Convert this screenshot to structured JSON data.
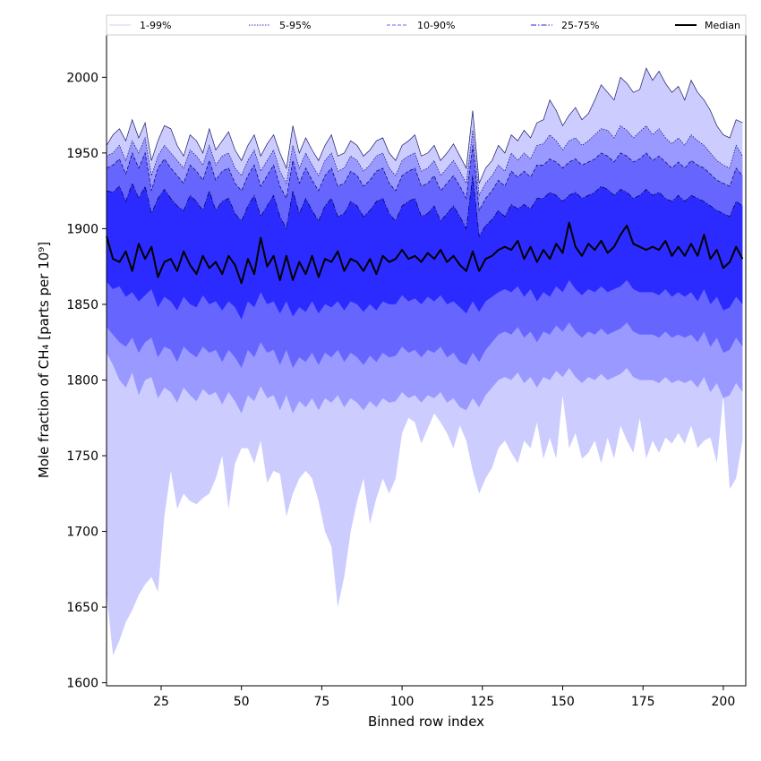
{
  "chart_data": {
    "type": "area",
    "xlabel": "Binned row index",
    "ylabel": "Mole fraction of CH₄ [parts per 10⁹]",
    "xlim": [
      8,
      207
    ],
    "ylim": [
      1598,
      2028
    ],
    "x_ticks": [
      25,
      50,
      75,
      100,
      125,
      150,
      175,
      200
    ],
    "y_ticks": [
      1600,
      1650,
      1700,
      1750,
      1800,
      1850,
      1900,
      1950,
      2000
    ],
    "x_tick_labels": [
      "25",
      "50",
      "75",
      "100",
      "125",
      "150",
      "175",
      "200"
    ],
    "y_tick_labels": [
      "1600",
      "1650",
      "1700",
      "1750",
      "1800",
      "1850",
      "1900",
      "1950",
      "2000"
    ],
    "legend_position": "top, single row above plot",
    "legend": [
      {
        "label": "1-99%",
        "color": "#ccccff",
        "style": "solid"
      },
      {
        "label": "5-95%",
        "color": "#3333cc",
        "style": "dotted"
      },
      {
        "label": "10-90%",
        "color": "#6666ee",
        "style": "dashed"
      },
      {
        "label": "25-75%",
        "color": "#2222dd",
        "style": "dashdot"
      },
      {
        "label": "Median",
        "color": "#000000",
        "style": "solid"
      }
    ],
    "bands": [
      {
        "name": "1-99%",
        "fill": "#ccccff",
        "line": "#1a1a66",
        "lower_key": "p1",
        "upper_key": "p99",
        "dash": "0"
      },
      {
        "name": "5-95%",
        "fill": "#9999ff",
        "line": "#0a0a66",
        "lower_key": "p5",
        "upper_key": "p95",
        "dash": "1.5,1.5"
      },
      {
        "name": "10-90%",
        "fill": "#6666ff",
        "line": "#000066",
        "lower_key": "p10",
        "upper_key": "p90",
        "dash": "4,2"
      },
      {
        "name": "25-75%",
        "fill": "#2b2bff",
        "line": "#000044",
        "lower_key": "p25",
        "upper_key": "p75",
        "dash": "6,2,1.5,2"
      }
    ],
    "x": [
      8,
      10,
      12,
      14,
      16,
      18,
      20,
      22,
      24,
      26,
      28,
      30,
      32,
      34,
      36,
      38,
      40,
      42,
      44,
      46,
      48,
      50,
      52,
      54,
      56,
      58,
      60,
      62,
      64,
      66,
      68,
      70,
      72,
      74,
      76,
      78,
      80,
      82,
      84,
      86,
      88,
      90,
      92,
      94,
      96,
      98,
      100,
      102,
      104,
      106,
      108,
      110,
      112,
      114,
      116,
      118,
      120,
      122,
      124,
      126,
      128,
      130,
      132,
      134,
      136,
      138,
      140,
      142,
      144,
      146,
      148,
      150,
      152,
      154,
      156,
      158,
      160,
      162,
      164,
      166,
      168,
      170,
      172,
      174,
      176,
      178,
      180,
      182,
      184,
      186,
      188,
      190,
      192,
      194,
      196,
      198,
      200,
      202,
      204,
      206
    ],
    "p99": [
      1955,
      1962,
      1966,
      1958,
      1972,
      1960,
      1970,
      1945,
      1958,
      1968,
      1966,
      1955,
      1948,
      1962,
      1958,
      1950,
      1966,
      1952,
      1958,
      1964,
      1952,
      1945,
      1955,
      1962,
      1948,
      1956,
      1962,
      1950,
      1940,
      1968,
      1950,
      1960,
      1952,
      1945,
      1955,
      1962,
      1948,
      1950,
      1958,
      1955,
      1948,
      1952,
      1958,
      1960,
      1950,
      1945,
      1955,
      1958,
      1962,
      1948,
      1950,
      1955,
      1945,
      1950,
      1956,
      1948,
      1940,
      1978,
      1930,
      1940,
      1945,
      1955,
      1950,
      1962,
      1958,
      1965,
      1960,
      1970,
      1972,
      1985,
      1978,
      1968,
      1975,
      1980,
      1972,
      1976,
      1985,
      1995,
      1990,
      1985,
      2000,
      1996,
      1990,
      1992,
      2006,
      1998,
      2004,
      1996,
      1990,
      1994,
      1985,
      1998,
      1990,
      1985,
      1978,
      1968,
      1962,
      1960,
      1972,
      1970
    ],
    "p95": [
      1948,
      1950,
      1955,
      1945,
      1958,
      1950,
      1960,
      1935,
      1948,
      1955,
      1950,
      1945,
      1940,
      1952,
      1948,
      1942,
      1955,
      1942,
      1948,
      1950,
      1940,
      1935,
      1945,
      1952,
      1938,
      1945,
      1952,
      1938,
      1930,
      1955,
      1940,
      1950,
      1942,
      1935,
      1945,
      1950,
      1938,
      1940,
      1948,
      1945,
      1938,
      1942,
      1948,
      1950,
      1940,
      1935,
      1945,
      1948,
      1950,
      1938,
      1940,
      1945,
      1935,
      1940,
      1945,
      1938,
      1930,
      1965,
      1922,
      1930,
      1935,
      1942,
      1938,
      1950,
      1945,
      1950,
      1946,
      1955,
      1956,
      1962,
      1958,
      1952,
      1958,
      1960,
      1955,
      1958,
      1962,
      1966,
      1965,
      1960,
      1968,
      1965,
      1960,
      1964,
      1968,
      1962,
      1966,
      1960,
      1956,
      1960,
      1955,
      1962,
      1958,
      1955,
      1950,
      1945,
      1942,
      1940,
      1955,
      1948
    ],
    "p90": [
      1940,
      1942,
      1946,
      1936,
      1950,
      1940,
      1950,
      1925,
      1940,
      1946,
      1940,
      1935,
      1930,
      1942,
      1938,
      1932,
      1945,
      1932,
      1938,
      1940,
      1930,
      1925,
      1935,
      1942,
      1928,
      1935,
      1942,
      1928,
      1920,
      1945,
      1930,
      1940,
      1932,
      1925,
      1935,
      1940,
      1928,
      1930,
      1938,
      1935,
      1928,
      1932,
      1938,
      1940,
      1930,
      1925,
      1935,
      1938,
      1940,
      1928,
      1930,
      1935,
      1925,
      1930,
      1935,
      1928,
      1920,
      1955,
      1912,
      1920,
      1925,
      1932,
      1928,
      1938,
      1934,
      1938,
      1934,
      1942,
      1942,
      1946,
      1944,
      1940,
      1944,
      1946,
      1942,
      1944,
      1946,
      1950,
      1948,
      1944,
      1950,
      1948,
      1944,
      1946,
      1950,
      1945,
      1948,
      1944,
      1940,
      1944,
      1940,
      1945,
      1942,
      1940,
      1936,
      1932,
      1930,
      1928,
      1940,
      1935
    ],
    "p75": [
      1925,
      1924,
      1928,
      1918,
      1930,
      1920,
      1928,
      1910,
      1920,
      1926,
      1920,
      1915,
      1912,
      1922,
      1918,
      1912,
      1925,
      1912,
      1918,
      1920,
      1910,
      1905,
      1915,
      1922,
      1908,
      1915,
      1922,
      1908,
      1900,
      1925,
      1910,
      1920,
      1912,
      1905,
      1915,
      1920,
      1908,
      1910,
      1918,
      1915,
      1908,
      1912,
      1918,
      1920,
      1910,
      1905,
      1915,
      1918,
      1920,
      1908,
      1910,
      1915,
      1905,
      1910,
      1915,
      1908,
      1900,
      1935,
      1895,
      1902,
      1906,
      1912,
      1908,
      1916,
      1913,
      1916,
      1913,
      1920,
      1920,
      1924,
      1922,
      1918,
      1922,
      1924,
      1920,
      1922,
      1924,
      1928,
      1926,
      1922,
      1926,
      1924,
      1920,
      1922,
      1926,
      1922,
      1924,
      1920,
      1918,
      1922,
      1918,
      1922,
      1920,
      1918,
      1915,
      1912,
      1910,
      1908,
      1918,
      1915
    ],
    "p50": [
      1895,
      1880,
      1878,
      1885,
      1872,
      1890,
      1880,
      1888,
      1868,
      1878,
      1880,
      1872,
      1885,
      1876,
      1870,
      1882,
      1874,
      1878,
      1870,
      1882,
      1876,
      1864,
      1880,
      1870,
      1894,
      1875,
      1882,
      1866,
      1882,
      1866,
      1878,
      1870,
      1882,
      1868,
      1880,
      1878,
      1885,
      1872,
      1880,
      1878,
      1872,
      1880,
      1870,
      1882,
      1878,
      1880,
      1886,
      1880,
      1882,
      1878,
      1884,
      1880,
      1886,
      1878,
      1882,
      1876,
      1872,
      1885,
      1872,
      1880,
      1882,
      1886,
      1888,
      1886,
      1892,
      1880,
      1888,
      1878,
      1886,
      1880,
      1890,
      1884,
      1904,
      1888,
      1882,
      1890,
      1886,
      1892,
      1884,
      1888,
      1896,
      1902,
      1890,
      1888,
      1886,
      1888,
      1886,
      1892,
      1882,
      1888,
      1882,
      1890,
      1882,
      1896,
      1880,
      1886,
      1874,
      1878,
      1888,
      1880
    ],
    "p25": [
      1865,
      1860,
      1862,
      1855,
      1858,
      1852,
      1856,
      1860,
      1848,
      1855,
      1852,
      1846,
      1855,
      1850,
      1848,
      1856,
      1850,
      1852,
      1846,
      1852,
      1848,
      1840,
      1852,
      1848,
      1858,
      1850,
      1852,
      1844,
      1852,
      1842,
      1848,
      1845,
      1852,
      1844,
      1850,
      1848,
      1852,
      1846,
      1852,
      1850,
      1845,
      1850,
      1846,
      1852,
      1850,
      1850,
      1856,
      1852,
      1854,
      1850,
      1855,
      1852,
      1856,
      1850,
      1852,
      1848,
      1844,
      1852,
      1845,
      1852,
      1855,
      1858,
      1860,
      1858,
      1862,
      1855,
      1860,
      1852,
      1858,
      1855,
      1862,
      1858,
      1866,
      1860,
      1856,
      1860,
      1858,
      1862,
      1858,
      1860,
      1862,
      1866,
      1860,
      1858,
      1858,
      1858,
      1856,
      1860,
      1855,
      1858,
      1855,
      1858,
      1852,
      1860,
      1850,
      1855,
      1846,
      1848,
      1855,
      1850
    ],
    "p10": [
      1835,
      1830,
      1825,
      1822,
      1828,
      1818,
      1825,
      1828,
      1815,
      1822,
      1820,
      1812,
      1822,
      1818,
      1815,
      1822,
      1818,
      1820,
      1812,
      1820,
      1815,
      1808,
      1820,
      1815,
      1825,
      1818,
      1820,
      1810,
      1820,
      1808,
      1815,
      1812,
      1818,
      1810,
      1818,
      1815,
      1820,
      1812,
      1818,
      1815,
      1810,
      1816,
      1812,
      1818,
      1815,
      1816,
      1822,
      1818,
      1820,
      1815,
      1820,
      1818,
      1822,
      1815,
      1818,
      1812,
      1810,
      1818,
      1812,
      1820,
      1825,
      1830,
      1832,
      1830,
      1835,
      1828,
      1832,
      1825,
      1832,
      1830,
      1836,
      1832,
      1838,
      1832,
      1828,
      1832,
      1830,
      1834,
      1830,
      1832,
      1834,
      1838,
      1832,
      1830,
      1830,
      1830,
      1828,
      1832,
      1828,
      1830,
      1828,
      1830,
      1825,
      1832,
      1822,
      1828,
      1818,
      1820,
      1828,
      1822
    ],
    "p5": [
      1818,
      1810,
      1800,
      1795,
      1805,
      1790,
      1800,
      1802,
      1788,
      1795,
      1792,
      1785,
      1795,
      1790,
      1786,
      1794,
      1790,
      1792,
      1784,
      1792,
      1786,
      1778,
      1790,
      1786,
      1796,
      1788,
      1790,
      1780,
      1790,
      1778,
      1786,
      1782,
      1788,
      1780,
      1788,
      1785,
      1790,
      1782,
      1788,
      1785,
      1780,
      1786,
      1782,
      1788,
      1785,
      1786,
      1792,
      1788,
      1790,
      1785,
      1790,
      1788,
      1792,
      1785,
      1788,
      1782,
      1780,
      1788,
      1782,
      1790,
      1795,
      1800,
      1802,
      1800,
      1805,
      1798,
      1802,
      1795,
      1802,
      1800,
      1806,
      1802,
      1808,
      1802,
      1798,
      1802,
      1800,
      1804,
      1800,
      1802,
      1804,
      1808,
      1802,
      1800,
      1800,
      1800,
      1798,
      1802,
      1798,
      1800,
      1798,
      1800,
      1795,
      1802,
      1792,
      1798,
      1788,
      1790,
      1798,
      1792
    ],
    "p1": [
      1660,
      1618,
      1628,
      1640,
      1648,
      1658,
      1665,
      1670,
      1660,
      1710,
      1740,
      1715,
      1725,
      1720,
      1718,
      1722,
      1725,
      1735,
      1750,
      1715,
      1745,
      1755,
      1755,
      1745,
      1760,
      1732,
      1740,
      1738,
      1710,
      1725,
      1735,
      1740,
      1735,
      1720,
      1700,
      1690,
      1650,
      1670,
      1700,
      1720,
      1735,
      1705,
      1722,
      1735,
      1725,
      1735,
      1765,
      1775,
      1772,
      1758,
      1768,
      1778,
      1772,
      1765,
      1755,
      1770,
      1760,
      1740,
      1725,
      1735,
      1742,
      1755,
      1760,
      1752,
      1745,
      1760,
      1755,
      1772,
      1748,
      1762,
      1748,
      1790,
      1755,
      1765,
      1748,
      1752,
      1760,
      1745,
      1762,
      1748,
      1770,
      1760,
      1752,
      1775,
      1748,
      1760,
      1752,
      1762,
      1758,
      1765,
      1758,
      1770,
      1755,
      1760,
      1762,
      1745,
      1790,
      1728,
      1735,
      1760
    ]
  }
}
